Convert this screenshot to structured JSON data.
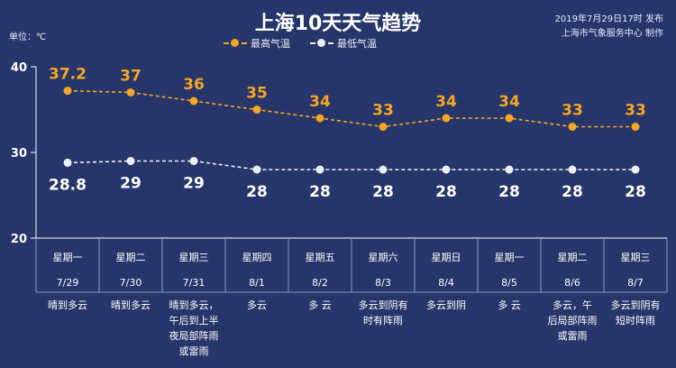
{
  "header": {
    "title": "上海10天天气趋势",
    "publish_line1": "2019年7月29日17时 发布",
    "publish_line2": "上海市气象服务中心 制作",
    "unit": "单位：℃"
  },
  "colors": {
    "background": "#26356a",
    "high": "#f5a623",
    "low": "#eef0f8",
    "grid": "#ffffff"
  },
  "chart_data": {
    "type": "line",
    "title": "上海10天天气趋势",
    "ylim": [
      20,
      40
    ],
    "yticks": [
      "20",
      "30",
      "40"
    ],
    "legend_position": "top-center",
    "categories": [
      "7/29",
      "7/30",
      "7/31",
      "8/1",
      "8/2",
      "8/3",
      "8/4",
      "8/5",
      "8/6",
      "8/7"
    ],
    "series": [
      {
        "name": "最高气温",
        "values": [
          37.2,
          37,
          36,
          35,
          34,
          33,
          34,
          34,
          33,
          33
        ],
        "labels": [
          "37.2",
          "37",
          "36",
          "35",
          "34",
          "33",
          "34",
          "34",
          "33",
          "33"
        ]
      },
      {
        "name": "最低气温",
        "values": [
          28.8,
          29,
          29,
          28,
          28,
          28,
          28,
          28,
          28,
          28
        ],
        "labels": [
          "28.8",
          "29",
          "29",
          "28",
          "28",
          "28",
          "28",
          "28",
          "28",
          "28"
        ]
      }
    ],
    "days": [
      {
        "weekday": "星期一",
        "date": "7/29",
        "weather": "晴到多云"
      },
      {
        "weekday": "星期二",
        "date": "7/30",
        "weather": "晴到多云"
      },
      {
        "weekday": "星期三",
        "date": "7/31",
        "weather": "晴到多云，\n午后到上半\n夜局部阵雨\n或雷雨"
      },
      {
        "weekday": "星期四",
        "date": "8/1",
        "weather": "多云"
      },
      {
        "weekday": "星期五",
        "date": "8/2",
        "weather": "多  云"
      },
      {
        "weekday": "星期六",
        "date": "8/3",
        "weather": "多云到阴有\n时有阵雨"
      },
      {
        "weekday": "星期日",
        "date": "8/4",
        "weather": "多云到阴"
      },
      {
        "weekday": "星期一",
        "date": "8/5",
        "weather": "多  云"
      },
      {
        "weekday": "星期二",
        "date": "8/6",
        "weather": "多云，午\n后局部阵雨\n或雷雨"
      },
      {
        "weekday": "星期三",
        "date": "8/7",
        "weather": "多云到阴有\n短时阵雨"
      }
    ]
  }
}
